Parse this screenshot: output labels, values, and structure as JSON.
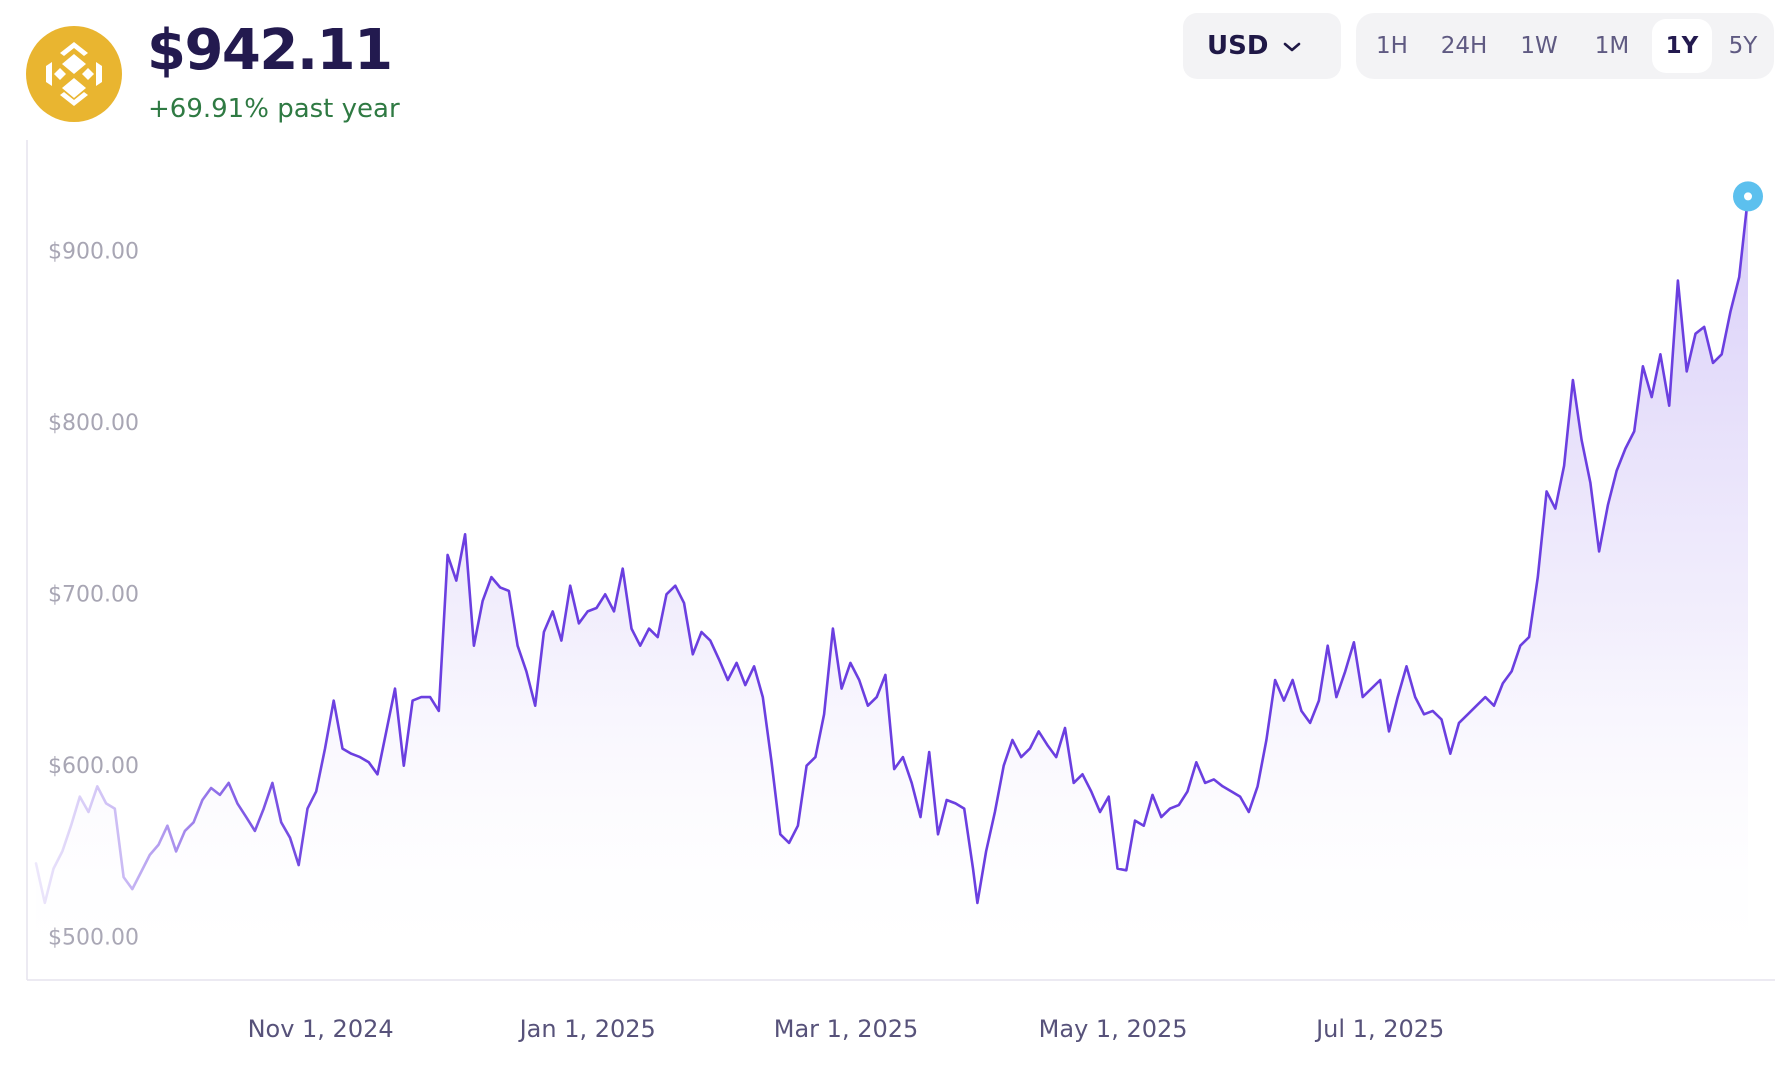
{
  "header": {
    "logo_icon": "bnb-coin-icon",
    "price": "$942.11",
    "change": "+69.91% past year"
  },
  "controls": {
    "currency": "USD",
    "ranges": [
      "1H",
      "24H",
      "1W",
      "1M",
      "1Y",
      "5Y"
    ],
    "active_range": "1Y"
  },
  "colors": {
    "line": "#6b3fe0",
    "fill": "#b9a6f2",
    "reference_line": "#74c5dc",
    "endpoint": "#5cc0ee",
    "positive": "#2f7a43",
    "logo": "#e9b530"
  },
  "chart_data": {
    "type": "area",
    "title": "",
    "xlabel": "",
    "ylabel": "",
    "ylim": [
      485,
      975
    ],
    "y_ticks": [
      500,
      600,
      700,
      800,
      900
    ],
    "y_tick_labels": [
      "$500.00",
      "$600.00",
      "$700.00",
      "$800.00",
      "$900.00"
    ],
    "x_ticks": [
      "2024-11-01",
      "2025-01-01",
      "2025-03-01",
      "2025-05-01",
      "2025-07-01"
    ],
    "x_tick_labels": [
      "Nov 1, 2024",
      "Jan 1, 2025",
      "Mar 1, 2025",
      "May 1, 2025",
      "Jul 1, 2025"
    ],
    "current_value": 942.11,
    "grid": false,
    "series": [
      {
        "points": [
          [
            "2024-08-28",
            553
          ],
          [
            "2024-08-30",
            530
          ],
          [
            "2024-09-01",
            550
          ],
          [
            "2024-09-03",
            560
          ],
          [
            "2024-09-05",
            575
          ],
          [
            "2024-09-07",
            592
          ],
          [
            "2024-09-09",
            583
          ],
          [
            "2024-09-11",
            598
          ],
          [
            "2024-09-13",
            588
          ],
          [
            "2024-09-15",
            585
          ],
          [
            "2024-09-17",
            545
          ],
          [
            "2024-09-19",
            538
          ],
          [
            "2024-09-21",
            548
          ],
          [
            "2024-09-23",
            558
          ],
          [
            "2024-09-25",
            564
          ],
          [
            "2024-09-27",
            575
          ],
          [
            "2024-09-29",
            560
          ],
          [
            "2024-10-01",
            572
          ],
          [
            "2024-10-03",
            577
          ],
          [
            "2024-10-05",
            590
          ],
          [
            "2024-10-07",
            597
          ],
          [
            "2024-10-09",
            593
          ],
          [
            "2024-10-11",
            600
          ],
          [
            "2024-10-13",
            588
          ],
          [
            "2024-10-15",
            580
          ],
          [
            "2024-10-17",
            572
          ],
          [
            "2024-10-19",
            585
          ],
          [
            "2024-10-21",
            600
          ],
          [
            "2024-10-23",
            577
          ],
          [
            "2024-10-25",
            568
          ],
          [
            "2024-10-27",
            552
          ],
          [
            "2024-10-29",
            585
          ],
          [
            "2024-10-31",
            595
          ],
          [
            "2024-11-02",
            620
          ],
          [
            "2024-11-04",
            648
          ],
          [
            "2024-11-06",
            620
          ],
          [
            "2024-11-08",
            617
          ],
          [
            "2024-11-10",
            615
          ],
          [
            "2024-11-12",
            612
          ],
          [
            "2024-11-14",
            605
          ],
          [
            "2024-11-16",
            630
          ],
          [
            "2024-11-18",
            655
          ],
          [
            "2024-11-20",
            610
          ],
          [
            "2024-11-22",
            648
          ],
          [
            "2024-11-24",
            650
          ],
          [
            "2024-11-26",
            650
          ],
          [
            "2024-11-28",
            642
          ],
          [
            "2024-11-30",
            733
          ],
          [
            "2024-12-02",
            718
          ],
          [
            "2024-12-04",
            745
          ],
          [
            "2024-12-06",
            680
          ],
          [
            "2024-12-08",
            706
          ],
          [
            "2024-12-10",
            720
          ],
          [
            "2024-12-12",
            714
          ],
          [
            "2024-12-14",
            712
          ],
          [
            "2024-12-16",
            680
          ],
          [
            "2024-12-18",
            665
          ],
          [
            "2024-12-20",
            645
          ],
          [
            "2024-12-22",
            688
          ],
          [
            "2024-12-24",
            700
          ],
          [
            "2024-12-26",
            683
          ],
          [
            "2024-12-28",
            715
          ],
          [
            "2024-12-30",
            693
          ],
          [
            "2025-01-01",
            700
          ],
          [
            "2025-01-03",
            702
          ],
          [
            "2025-01-05",
            710
          ],
          [
            "2025-01-07",
            700
          ],
          [
            "2025-01-09",
            725
          ],
          [
            "2025-01-11",
            690
          ],
          [
            "2025-01-13",
            680
          ],
          [
            "2025-01-15",
            690
          ],
          [
            "2025-01-17",
            685
          ],
          [
            "2025-01-19",
            710
          ],
          [
            "2025-01-21",
            715
          ],
          [
            "2025-01-23",
            705
          ],
          [
            "2025-01-25",
            675
          ],
          [
            "2025-01-27",
            688
          ],
          [
            "2025-01-29",
            683
          ],
          [
            "2025-01-31",
            672
          ],
          [
            "2025-02-02",
            660
          ],
          [
            "2025-02-04",
            670
          ],
          [
            "2025-02-06",
            657
          ],
          [
            "2025-02-08",
            668
          ],
          [
            "2025-02-10",
            650
          ],
          [
            "2025-02-12",
            612
          ],
          [
            "2025-02-14",
            570
          ],
          [
            "2025-02-16",
            565
          ],
          [
            "2025-02-18",
            575
          ],
          [
            "2025-02-20",
            610
          ],
          [
            "2025-02-22",
            615
          ],
          [
            "2025-02-24",
            640
          ],
          [
            "2025-02-26",
            690
          ],
          [
            "2025-02-28",
            655
          ],
          [
            "2025-03-02",
            670
          ],
          [
            "2025-03-04",
            660
          ],
          [
            "2025-03-06",
            645
          ],
          [
            "2025-03-08",
            650
          ],
          [
            "2025-03-10",
            663
          ],
          [
            "2025-03-12",
            608
          ],
          [
            "2025-03-14",
            615
          ],
          [
            "2025-03-16",
            600
          ],
          [
            "2025-03-18",
            580
          ],
          [
            "2025-03-20",
            618
          ],
          [
            "2025-03-22",
            570
          ],
          [
            "2025-03-24",
            590
          ],
          [
            "2025-03-26",
            588
          ],
          [
            "2025-03-28",
            585
          ],
          [
            "2025-03-30",
            550
          ],
          [
            "2025-03-31",
            530
          ],
          [
            "2025-04-02",
            560
          ],
          [
            "2025-04-04",
            583
          ],
          [
            "2025-04-06",
            610
          ],
          [
            "2025-04-08",
            625
          ],
          [
            "2025-04-10",
            615
          ],
          [
            "2025-04-12",
            620
          ],
          [
            "2025-04-14",
            630
          ],
          [
            "2025-04-16",
            622
          ],
          [
            "2025-04-18",
            615
          ],
          [
            "2025-04-20",
            632
          ],
          [
            "2025-04-22",
            600
          ],
          [
            "2025-04-24",
            605
          ],
          [
            "2025-04-26",
            595
          ],
          [
            "2025-04-28",
            583
          ],
          [
            "2025-04-30",
            592
          ],
          [
            "2025-05-02",
            550
          ],
          [
            "2025-05-04",
            549
          ],
          [
            "2025-05-06",
            578
          ],
          [
            "2025-05-08",
            575
          ],
          [
            "2025-05-10",
            593
          ],
          [
            "2025-05-12",
            580
          ],
          [
            "2025-05-14",
            585
          ],
          [
            "2025-05-16",
            587
          ],
          [
            "2025-05-18",
            595
          ],
          [
            "2025-05-20",
            612
          ],
          [
            "2025-05-22",
            600
          ],
          [
            "2025-05-24",
            602
          ],
          [
            "2025-05-26",
            598
          ],
          [
            "2025-05-28",
            595
          ],
          [
            "2025-05-30",
            592
          ],
          [
            "2025-06-01",
            583
          ],
          [
            "2025-06-03",
            598
          ],
          [
            "2025-06-05",
            625
          ],
          [
            "2025-06-07",
            660
          ],
          [
            "2025-06-09",
            648
          ],
          [
            "2025-06-11",
            660
          ],
          [
            "2025-06-13",
            642
          ],
          [
            "2025-06-15",
            635
          ],
          [
            "2025-06-17",
            648
          ],
          [
            "2025-06-19",
            680
          ],
          [
            "2025-06-21",
            650
          ],
          [
            "2025-06-23",
            665
          ],
          [
            "2025-06-25",
            682
          ],
          [
            "2025-06-27",
            650
          ],
          [
            "2025-06-29",
            655
          ],
          [
            "2025-07-01",
            660
          ],
          [
            "2025-07-03",
            630
          ],
          [
            "2025-07-05",
            650
          ],
          [
            "2025-07-07",
            668
          ],
          [
            "2025-07-09",
            650
          ],
          [
            "2025-07-11",
            640
          ],
          [
            "2025-07-13",
            642
          ],
          [
            "2025-07-15",
            637
          ],
          [
            "2025-07-17",
            617
          ],
          [
            "2025-07-19",
            635
          ],
          [
            "2025-07-21",
            640
          ],
          [
            "2025-07-23",
            645
          ],
          [
            "2025-07-25",
            650
          ],
          [
            "2025-07-27",
            645
          ],
          [
            "2025-07-29",
            658
          ],
          [
            "2025-07-31",
            665
          ],
          [
            "2025-08-02",
            680
          ],
          [
            "2025-08-04",
            685
          ],
          [
            "2025-08-06",
            720
          ],
          [
            "2025-08-08",
            770
          ],
          [
            "2025-08-10",
            760
          ],
          [
            "2025-08-12",
            785
          ],
          [
            "2025-08-14",
            835
          ],
          [
            "2025-08-16",
            800
          ],
          [
            "2025-08-18",
            775
          ],
          [
            "2025-08-20",
            735
          ],
          [
            "2025-08-22",
            762
          ],
          [
            "2025-08-24",
            782
          ],
          [
            "2025-08-26",
            795
          ],
          [
            "2025-08-28",
            805
          ],
          [
            "2025-08-30",
            843
          ],
          [
            "2025-09-01",
            825
          ],
          [
            "2025-09-03",
            850
          ],
          [
            "2025-09-05",
            820
          ],
          [
            "2025-09-07",
            893
          ],
          [
            "2025-09-09",
            840
          ],
          [
            "2025-09-11",
            862
          ],
          [
            "2025-09-13",
            866
          ],
          [
            "2025-09-15",
            845
          ],
          [
            "2025-09-17",
            850
          ],
          [
            "2025-09-19",
            875
          ],
          [
            "2025-09-21",
            895
          ],
          [
            "2025-09-23",
            942.11
          ]
        ]
      }
    ]
  }
}
